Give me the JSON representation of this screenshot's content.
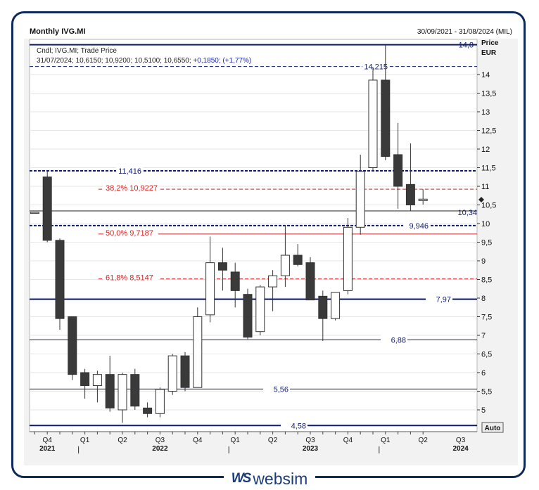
{
  "header": {
    "title": "Monthly IVG.MI",
    "date_range": "30/09/2021 - 31/08/2024 (MIL)"
  },
  "legend": {
    "line1": "Cndl; IVG.MI; Trade Price",
    "line2_prefix": "31/07/2024; 10,6150; 10,9200; 10,5100; 10,6550; ",
    "line2_change": "+0,1850; (+1,77%)"
  },
  "axis": {
    "price_label": "Price",
    "currency_label": "EUR",
    "auto_button": "Auto"
  },
  "brand": {
    "mark": "WS",
    "word": "websim"
  },
  "colors": {
    "navy": "#0e1a6e",
    "fib_red": "#d42020",
    "down_candle": "#3a3a3a",
    "up_candle": "#ffffff"
  },
  "chart_data": {
    "type": "candlestick",
    "y_range": [
      4.4,
      15.0
    ],
    "y_ticks": [
      "5",
      "5,5",
      "6",
      "6,5",
      "7",
      "7,5",
      "8",
      "8,5",
      "9",
      "9,5",
      "10",
      "10,5",
      "11",
      "11,5",
      "12",
      "12,5",
      "13",
      "13,5",
      "14"
    ],
    "x_quarter_labels": [
      "Q4",
      "Q1",
      "Q2",
      "Q3",
      "Q4",
      "Q1",
      "Q2",
      "Q3",
      "Q4",
      "Q1",
      "Q2",
      "Q3"
    ],
    "x_year_labels": [
      "2021",
      "2022",
      "2023",
      "2024"
    ],
    "candles": [
      {
        "o": 10.3,
        "h": 10.3,
        "l": 10.3,
        "c": 10.3
      },
      {
        "o": 11.25,
        "h": 11.4,
        "l": 9.5,
        "c": 9.55
      },
      {
        "o": 9.55,
        "h": 9.6,
        "l": 7.15,
        "c": 7.45
      },
      {
        "o": 7.5,
        "h": 7.5,
        "l": 5.8,
        "c": 5.95
      },
      {
        "o": 6.0,
        "h": 6.1,
        "l": 5.3,
        "c": 5.65
      },
      {
        "o": 5.65,
        "h": 6.05,
        "l": 5.2,
        "c": 5.95
      },
      {
        "o": 5.95,
        "h": 6.45,
        "l": 4.95,
        "c": 5.05
      },
      {
        "o": 5.0,
        "h": 6.0,
        "l": 4.65,
        "c": 5.95
      },
      {
        "o": 5.95,
        "h": 6.1,
        "l": 5.0,
        "c": 5.1
      },
      {
        "o": 5.05,
        "h": 5.2,
        "l": 4.8,
        "c": 4.9
      },
      {
        "o": 4.9,
        "h": 5.6,
        "l": 4.8,
        "c": 5.55
      },
      {
        "o": 5.5,
        "h": 6.5,
        "l": 5.4,
        "c": 6.45
      },
      {
        "o": 6.45,
        "h": 6.55,
        "l": 5.5,
        "c": 5.6
      },
      {
        "o": 5.6,
        "h": 7.75,
        "l": 5.6,
        "c": 7.5
      },
      {
        "o": 7.55,
        "h": 9.65,
        "l": 7.35,
        "c": 8.95
      },
      {
        "o": 8.95,
        "h": 9.35,
        "l": 8.2,
        "c": 8.75
      },
      {
        "o": 8.7,
        "h": 8.95,
        "l": 7.75,
        "c": 8.2
      },
      {
        "o": 8.1,
        "h": 8.25,
        "l": 6.9,
        "c": 6.95
      },
      {
        "o": 7.1,
        "h": 8.35,
        "l": 7.0,
        "c": 8.3
      },
      {
        "o": 8.3,
        "h": 8.75,
        "l": 7.65,
        "c": 8.6
      },
      {
        "o": 8.6,
        "h": 9.95,
        "l": 8.3,
        "c": 9.15
      },
      {
        "o": 9.15,
        "h": 9.45,
        "l": 8.85,
        "c": 8.9
      },
      {
        "o": 8.95,
        "h": 9.1,
        "l": 7.95,
        "c": 7.95
      },
      {
        "o": 8.05,
        "h": 8.2,
        "l": 6.85,
        "c": 7.45
      },
      {
        "o": 7.45,
        "h": 8.15,
        "l": 7.4,
        "c": 8.15
      },
      {
        "o": 8.2,
        "h": 10.15,
        "l": 8.1,
        "c": 9.9
      },
      {
        "o": 9.9,
        "h": 11.85,
        "l": 9.7,
        "c": 11.4
      },
      {
        "o": 11.5,
        "h": 14.2,
        "l": 11.4,
        "c": 13.85
      },
      {
        "o": 13.85,
        "h": 14.8,
        "l": 11.7,
        "c": 11.8
      },
      {
        "o": 11.85,
        "h": 12.7,
        "l": 10.4,
        "c": 11.0
      },
      {
        "o": 11.05,
        "h": 12.15,
        "l": 10.35,
        "c": 10.5
      },
      {
        "o": 10.615,
        "h": 10.92,
        "l": 10.51,
        "c": 10.655
      }
    ],
    "horizontal_levels": [
      {
        "value": 14.8,
        "label": "14,8",
        "style": "solid-thick"
      },
      {
        "value": 14.215,
        "label": "14,215",
        "style": "dashed"
      },
      {
        "value": 11.416,
        "label": "11,416",
        "style": "dashed-thick"
      },
      {
        "value": 10.34,
        "label": "10,34",
        "style": "solid-thin"
      },
      {
        "value": 9.946,
        "label": "9,946",
        "style": "dashed-thick"
      },
      {
        "value": 7.97,
        "label": "7,97",
        "style": "solid-thick"
      },
      {
        "value": 6.88,
        "label": "6,88",
        "style": "solid"
      },
      {
        "value": 5.56,
        "label": "5,56",
        "style": "solid"
      },
      {
        "value": 4.58,
        "label": "4,58",
        "style": "solid-thick"
      }
    ],
    "fibonacci_levels": [
      {
        "value": 10.9227,
        "label": "38,2% 10,9227",
        "style": "dashed"
      },
      {
        "value": 9.7187,
        "label": "50,0% 9,7187",
        "style": "solid"
      },
      {
        "value": 8.5147,
        "label": "61,8% 8,5147",
        "style": "dashed"
      }
    ]
  }
}
